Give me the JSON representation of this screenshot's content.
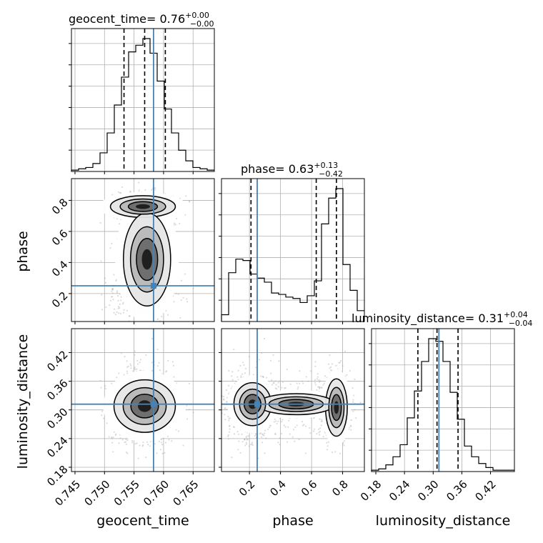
{
  "chart_data": {
    "type": "corner",
    "colors": {
      "truth": "#4682b4",
      "hist": "#000000",
      "grid": "#b0b0b0",
      "points": "#b0b0b0"
    },
    "parameters": [
      "geocent_time",
      "phase",
      "luminosity_distance"
    ],
    "titles": {
      "geocent_time": {
        "label": "geocent_time",
        "median": "0.76",
        "plus": "+0.00",
        "minus": "−0.00"
      },
      "phase": {
        "label": "phase",
        "median": "0.63",
        "plus": "+0.13",
        "minus": "−0.42"
      },
      "luminosity_distance": {
        "label": "luminosity_distance",
        "median": "0.31",
        "plus": "+0.04",
        "minus": "−0.04"
      }
    },
    "axes": {
      "geocent_time": {
        "label": "geocent_time",
        "range": [
          0.7444,
          0.7686
        ],
        "ticks": [
          "0.745",
          "0.750",
          "0.755",
          "0.760",
          "0.765"
        ]
      },
      "phase": {
        "label": "phase",
        "range": [
          0.02,
          0.94
        ],
        "ticks": [
          "0.2",
          "0.4",
          "0.6",
          "0.8"
        ]
      },
      "luminosity_distance": {
        "label": "luminosity_distance",
        "range": [
          0.171,
          0.47
        ],
        "ticks": [
          "0.18",
          "0.24",
          "0.30",
          "0.36",
          "0.42"
        ]
      }
    },
    "truths": {
      "geocent_time": 0.7583,
      "phase": 0.25,
      "luminosity_distance": 0.312
    },
    "quantiles": {
      "geocent_time": [
        0.7533,
        0.7568,
        0.7603
      ],
      "phase": [
        0.21,
        0.63,
        0.76
      ],
      "luminosity_distance": [
        0.268,
        0.308,
        0.352
      ]
    },
    "histograms": {
      "geocent_time": [
        1,
        2,
        3,
        6,
        14,
        29,
        50,
        71,
        90,
        95,
        100,
        89,
        68,
        47,
        29,
        16,
        8,
        3,
        2,
        1
      ],
      "phase": [
        5,
        36,
        46,
        45,
        35,
        32,
        29,
        21,
        20,
        18,
        17,
        14,
        19,
        30,
        72,
        91,
        98,
        42,
        23,
        8
      ],
      "luminosity_distance": [
        1,
        2,
        5,
        11,
        20,
        40,
        60,
        82,
        99,
        97,
        82,
        59,
        39,
        19,
        11,
        6,
        3,
        1,
        1,
        1
      ]
    }
  }
}
